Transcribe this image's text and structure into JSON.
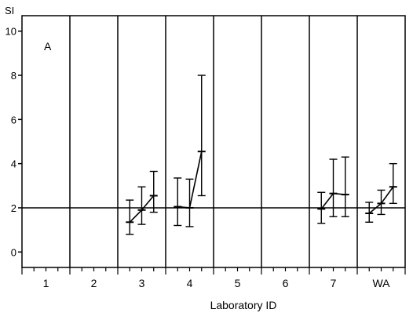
{
  "chart_data": {
    "type": "line",
    "panel_label": "A",
    "ylabel": "SI",
    "xlabel": "Laboratory ID",
    "categories": [
      "1",
      "2",
      "3",
      "4",
      "5",
      "6",
      "7",
      "WA"
    ],
    "ylim": [
      -0.7,
      10.7
    ],
    "yticks": [
      0,
      2,
      4,
      6,
      8,
      10
    ],
    "reference_line": 2,
    "grid": "vertical separators between categories",
    "groups": [
      {
        "category": "3",
        "points": [
          {
            "x": 2.75,
            "y": 1.35,
            "low": 0.8,
            "high": 2.35
          },
          {
            "x": 3.0,
            "y": 1.9,
            "low": 1.25,
            "high": 2.95
          },
          {
            "x": 3.25,
            "y": 2.55,
            "low": 1.8,
            "high": 3.65
          }
        ]
      },
      {
        "category": "4",
        "points": [
          {
            "x": 3.75,
            "y": 2.05,
            "low": 1.2,
            "high": 3.35
          },
          {
            "x": 4.0,
            "y": 2.0,
            "low": 1.15,
            "high": 3.3
          },
          {
            "x": 4.25,
            "y": 4.55,
            "low": 2.55,
            "high": 8.0
          }
        ]
      },
      {
        "category": "7",
        "points": [
          {
            "x": 6.75,
            "y": 1.95,
            "low": 1.3,
            "high": 2.7
          },
          {
            "x": 7.0,
            "y": 2.65,
            "low": 1.6,
            "high": 4.2
          },
          {
            "x": 7.25,
            "y": 2.6,
            "low": 1.6,
            "high": 4.3
          }
        ]
      },
      {
        "category": "WA",
        "points": [
          {
            "x": 7.75,
            "y": 1.75,
            "low": 1.35,
            "high": 2.25
          },
          {
            "x": 8.0,
            "y": 2.2,
            "low": 1.7,
            "high": 2.8
          },
          {
            "x": 8.25,
            "y": 2.95,
            "low": 2.2,
            "high": 4.0
          }
        ]
      }
    ]
  }
}
